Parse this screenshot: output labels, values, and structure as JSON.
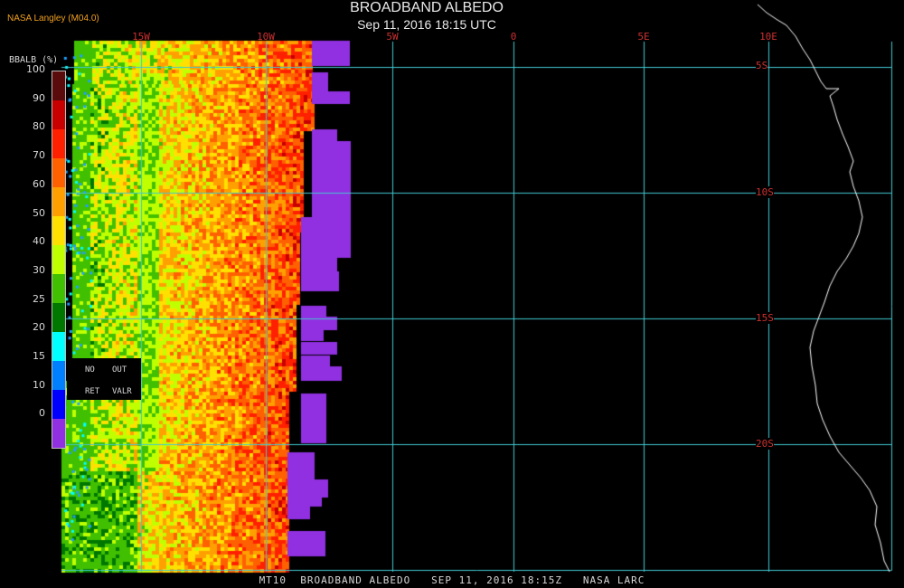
{
  "header": {
    "title": "BROADBAND ALBEDO",
    "subtitle": "Sep 11, 2016 18:15 UTC",
    "source": "NASA Langley (M04.0)"
  },
  "footer": "MT10  BROADBAND ALBEDO   SEP 11, 2016 18:15Z   NASA LARC",
  "legend": {
    "title": "BBALB (%)",
    "ticks": [
      "100",
      "90",
      "80",
      "70",
      "60",
      "50",
      "40",
      "30",
      "25",
      "20",
      "15",
      "10",
      "0"
    ],
    "colors": [
      "#5a0b0b",
      "#c80000",
      "#ff2000",
      "#ff6000",
      "#ffa000",
      "#ffe000",
      "#c0ff00",
      "#40c000",
      "#007800",
      "#00ffff",
      "#0080ff",
      "#0000ff",
      "#9030e0"
    ],
    "no_data": [
      "NO",
      "OUT",
      "RET",
      "VALR"
    ]
  },
  "map": {
    "lon_labels": [
      "15W",
      "10W",
      "5W",
      "0",
      "5E",
      "10E"
    ],
    "lat_labels": [
      "5S",
      "10S",
      "15S",
      "20S"
    ],
    "grid_color": "#40c8d0",
    "label_color": "#cc3030",
    "coastline_color": "#ffffff"
  }
}
